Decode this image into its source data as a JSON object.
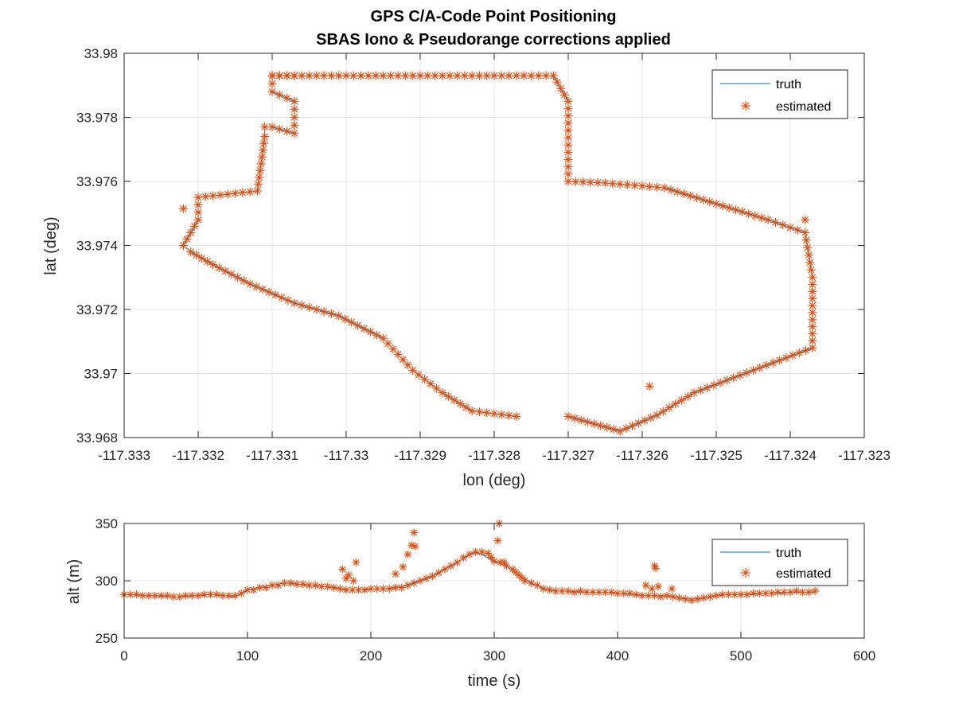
{
  "figure": {
    "title_line1": "GPS C/A-Code Point Positioning",
    "title_line2": "SBAS Iono & Pseudorange corrections applied"
  },
  "colors": {
    "truth": "#0072BD",
    "estimated": "#D95319",
    "grid": "#e6e6e6",
    "axis": "#262626"
  },
  "chart_data": [
    {
      "type": "scatter",
      "xlabel": "lon (deg)",
      "ylabel": "lat (deg)",
      "xlim": [
        -117.333,
        -117.323
      ],
      "ylim": [
        33.968,
        33.98
      ],
      "xticks": [
        -117.333,
        -117.332,
        -117.331,
        -117.33,
        -117.329,
        -117.328,
        -117.327,
        -117.326,
        -117.325,
        -117.324,
        -117.323
      ],
      "xtick_labels": [
        "-117.333",
        "-117.332",
        "-117.331",
        "-117.33",
        "-117.329",
        "-117.328",
        "-117.327",
        "-117.326",
        "-117.325",
        "-117.324",
        "-117.323"
      ],
      "yticks": [
        33.968,
        33.97,
        33.972,
        33.974,
        33.976,
        33.978,
        33.98
      ],
      "ytick_labels": [
        "33.968",
        "33.97",
        "33.972",
        "33.974",
        "33.976",
        "33.978",
        "33.98"
      ],
      "grid": true,
      "legend": {
        "placement": "top-right",
        "entries": [
          "truth",
          "estimated"
        ]
      },
      "series": [
        {
          "name": "truth",
          "style": "line",
          "x": [
            -117.3277,
            -117.3283,
            -117.3287,
            -117.3291,
            -117.3295,
            -117.3301,
            -117.3307,
            -117.3313,
            -117.3318,
            -117.3321,
            -117.3322,
            -117.332,
            -117.332,
            -117.3312,
            -117.3311,
            -117.3311,
            -117.331,
            -117.3307,
            -117.3307,
            -117.331,
            -117.331,
            -117.3307,
            -117.3307,
            -117.331,
            -117.331,
            -117.33,
            -117.3285,
            -117.3272,
            -117.327,
            -117.327,
            -117.3265,
            -117.3257,
            -117.325,
            -117.3243,
            -117.3238,
            -117.3237,
            -117.3237,
            -117.3245,
            -117.3253,
            -117.3258,
            -117.3263,
            -117.327
          ],
          "y": [
            33.96866,
            33.96883,
            33.9694,
            33.9701,
            33.9711,
            33.9718,
            33.9722,
            33.9728,
            33.9734,
            33.9738,
            33.974,
            33.9748,
            33.9755,
            33.9757,
            33.9774,
            33.9777,
            33.9777,
            33.9775,
            33.9785,
            33.9788,
            33.9793,
            33.9793,
            33.9793,
            33.9793,
            33.9793,
            33.9793,
            33.9793,
            33.9793,
            33.9785,
            33.976,
            33.97595,
            33.9758,
            33.9753,
            33.9748,
            33.9744,
            33.973,
            33.9708,
            33.9701,
            33.9694,
            33.9687,
            33.9682,
            33.96866
          ]
        },
        {
          "name": "estimated",
          "style": "marker",
          "x": [
            -117.3277,
            -117.3283,
            -117.3287,
            -117.3291,
            -117.3295,
            -117.3301,
            -117.3307,
            -117.3313,
            -117.3318,
            -117.3321,
            -117.3322,
            -117.332,
            -117.332,
            -117.3312,
            -117.3311,
            -117.3311,
            -117.331,
            -117.3307,
            -117.3307,
            -117.331,
            -117.331,
            -117.3307,
            -117.3307,
            -117.331,
            -117.331,
            -117.33,
            -117.3285,
            -117.3272,
            -117.327,
            -117.327,
            -117.3265,
            -117.3257,
            -117.325,
            -117.3243,
            -117.3238,
            -117.3237,
            -117.3237,
            -117.3245,
            -117.3253,
            -117.3258,
            -117.3263,
            -117.327,
            -117.3322,
            -117.3238,
            -117.3259
          ],
          "y": [
            33.96866,
            33.96883,
            33.9694,
            33.9701,
            33.9711,
            33.9718,
            33.9722,
            33.9728,
            33.9734,
            33.9738,
            33.974,
            33.9748,
            33.9755,
            33.9757,
            33.9774,
            33.9777,
            33.9777,
            33.9775,
            33.9785,
            33.9788,
            33.9793,
            33.9793,
            33.9793,
            33.9793,
            33.9793,
            33.9793,
            33.9793,
            33.9793,
            33.9785,
            33.976,
            33.97595,
            33.9758,
            33.9753,
            33.9748,
            33.9744,
            33.973,
            33.9708,
            33.9701,
            33.9694,
            33.9687,
            33.9682,
            33.96866,
            33.97515,
            33.9748,
            33.9696
          ]
        }
      ]
    },
    {
      "type": "scatter",
      "xlabel": "time (s)",
      "ylabel": "alt (m)",
      "xlim": [
        0,
        600
      ],
      "ylim": [
        250,
        350
      ],
      "xticks": [
        0,
        100,
        200,
        300,
        400,
        500,
        600
      ],
      "xtick_labels": [
        "0",
        "100",
        "200",
        "300",
        "400",
        "500",
        "600"
      ],
      "yticks": [
        250,
        300,
        350
      ],
      "ytick_labels": [
        "250",
        "300",
        "350"
      ],
      "grid": true,
      "legend": {
        "placement": "top-right",
        "entries": [
          "truth",
          "estimated"
        ]
      },
      "series": [
        {
          "name": "truth",
          "style": "line",
          "x": [
            0,
            20,
            40,
            60,
            70,
            80,
            90,
            100,
            110,
            120,
            130,
            140,
            150,
            160,
            170,
            180,
            190,
            200,
            210,
            220,
            230,
            240,
            250,
            260,
            270,
            280,
            285,
            290,
            300,
            310,
            320,
            330,
            340,
            350,
            360,
            370,
            380,
            390,
            400,
            410,
            420,
            430,
            440,
            450,
            460,
            470,
            480,
            490,
            500,
            510,
            520,
            530,
            540,
            550,
            560
          ],
          "y": [
            288,
            287,
            286,
            287,
            288,
            287,
            286,
            292,
            294,
            296,
            298,
            297,
            296,
            295,
            294,
            292,
            292,
            293,
            293,
            294,
            296,
            300,
            304,
            310,
            316,
            323,
            325,
            323,
            317,
            313,
            305,
            298,
            293,
            291,
            291,
            290,
            290,
            290,
            289,
            288,
            287,
            287,
            287,
            285,
            284,
            285,
            287,
            288,
            288,
            288,
            289,
            289,
            290,
            290,
            290
          ]
        },
        {
          "name": "estimated",
          "style": "marker",
          "x": [
            0,
            5,
            10,
            15,
            20,
            25,
            30,
            35,
            40,
            45,
            50,
            55,
            60,
            65,
            70,
            75,
            80,
            85,
            90,
            95,
            100,
            105,
            110,
            115,
            120,
            125,
            130,
            135,
            140,
            145,
            150,
            155,
            160,
            165,
            170,
            175,
            180,
            185,
            190,
            195,
            200,
            205,
            210,
            215,
            220,
            225,
            230,
            235,
            240,
            245,
            250,
            255,
            260,
            265,
            270,
            275,
            280,
            285,
            290,
            295,
            300,
            305,
            310,
            315,
            320,
            325,
            330,
            335,
            340,
            345,
            350,
            355,
            360,
            365,
            370,
            375,
            380,
            385,
            390,
            395,
            400,
            405,
            410,
            415,
            420,
            425,
            430,
            435,
            440,
            445,
            450,
            455,
            460,
            465,
            470,
            475,
            480,
            485,
            490,
            495,
            500,
            505,
            510,
            515,
            520,
            525,
            530,
            535,
            540,
            545,
            550,
            555,
            560,
            177,
            180,
            182,
            186,
            188,
            220,
            226,
            230,
            233,
            235,
            236,
            303,
            304,
            308,
            423,
            428,
            430,
            431,
            433,
            444
          ],
          "y": [
            288,
            288,
            288,
            287,
            287,
            287,
            287,
            287,
            286,
            286,
            287,
            287,
            287,
            288,
            288,
            288,
            287,
            287,
            287,
            289,
            292,
            292,
            294,
            294,
            296,
            296,
            298,
            298,
            297,
            297,
            296,
            296,
            295,
            295,
            294,
            293,
            292,
            292,
            292,
            292,
            293,
            293,
            293,
            293,
            294,
            294,
            296,
            298,
            300,
            302,
            304,
            307,
            310,
            313,
            316,
            320,
            323,
            325,
            325,
            324,
            317,
            316,
            313,
            310,
            305,
            300,
            298,
            296,
            293,
            292,
            291,
            291,
            291,
            290,
            291,
            290,
            290,
            290,
            290,
            290,
            289,
            289,
            289,
            288,
            287,
            287,
            287,
            286,
            287,
            286,
            285,
            284,
            283,
            284,
            285,
            286,
            287,
            288,
            288,
            288,
            288,
            288,
            289,
            289,
            289,
            289,
            290,
            290,
            290,
            291,
            290,
            290,
            291,
            310,
            302,
            305,
            300,
            316,
            306,
            312,
            323,
            331,
            342,
            330,
            335,
            350,
            316,
            296,
            293,
            313,
            311,
            295,
            293
          ]
        }
      ]
    }
  ]
}
